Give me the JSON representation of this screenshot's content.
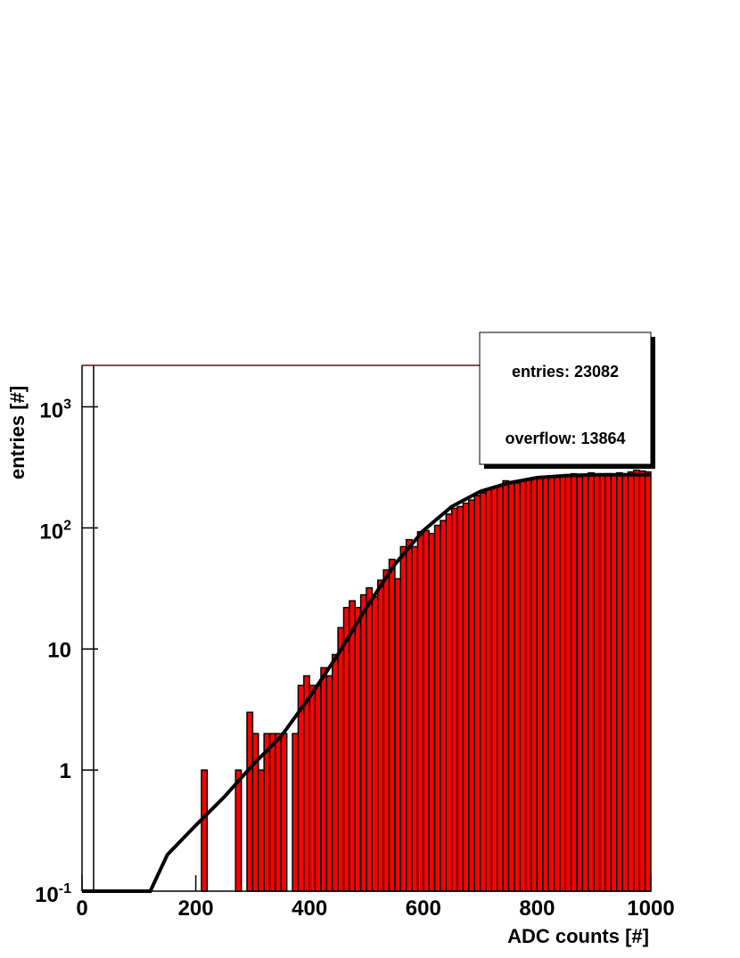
{
  "chart_data": {
    "type": "histogram",
    "bins": [
      0,
      10,
      20,
      30,
      40,
      50,
      60,
      70,
      80,
      90,
      100,
      110,
      120,
      130,
      140,
      150,
      160,
      170,
      180,
      190,
      200,
      210,
      220,
      230,
      240,
      250,
      260,
      270,
      280,
      290,
      300,
      310,
      320,
      330,
      340,
      350,
      360,
      370,
      380,
      390,
      400,
      410,
      420,
      430,
      440,
      450,
      460,
      470,
      480,
      490,
      500,
      510,
      520,
      530,
      540,
      550,
      560,
      570,
      580,
      590,
      600,
      610,
      620,
      630,
      640,
      650,
      660,
      670,
      680,
      690,
      700,
      710,
      720,
      730,
      740,
      750,
      760,
      770,
      780,
      790,
      800,
      810,
      820,
      830,
      840,
      850,
      860,
      870,
      880,
      890,
      900,
      910,
      920,
      930,
      940,
      950,
      960,
      970,
      980,
      990,
      1000
    ],
    "values": [
      0,
      0,
      0,
      0,
      0,
      0,
      0,
      0,
      0,
      0,
      0,
      0,
      0,
      0,
      0,
      0,
      0,
      0,
      0,
      0,
      0,
      1,
      0,
      0,
      0,
      0,
      0,
      1,
      0,
      3,
      2,
      1,
      2,
      2,
      2,
      2,
      0,
      2,
      5,
      6,
      5,
      5,
      7,
      6,
      9,
      15,
      22,
      25,
      22,
      28,
      32,
      27,
      37,
      45,
      55,
      38,
      70,
      80,
      70,
      93,
      95,
      90,
      105,
      115,
      130,
      145,
      150,
      160,
      170,
      185,
      195,
      210,
      215,
      220,
      245,
      240,
      235,
      245,
      250,
      255,
      260,
      265,
      265,
      270,
      270,
      275,
      280,
      265,
      275,
      285,
      270,
      275,
      280,
      270,
      285,
      280,
      290,
      300,
      295,
      290
    ],
    "color": "#ff0000",
    "fit": {
      "color": "#000000",
      "x": [
        0,
        120,
        150,
        200,
        250,
        300,
        350,
        400,
        450,
        500,
        550,
        600,
        650,
        700,
        750,
        800,
        850,
        900,
        950,
        1000
      ],
      "values": [
        0.1,
        0.1,
        0.2,
        0.35,
        0.6,
        1.1,
        1.9,
        4,
        9,
        22,
        50,
        95,
        150,
        200,
        235,
        260,
        270,
        275,
        275,
        275
      ]
    },
    "x_label": "ADC counts [#]",
    "y_label": "entries [#]",
    "xlim": [
      0,
      1000
    ],
    "ylim": [
      0.1,
      2200
    ],
    "log_y": true,
    "xticks": [
      0,
      200,
      400,
      600,
      800,
      1000
    ],
    "yticks": [
      {
        "value": 0.1,
        "label": "10",
        "exponent": "-1"
      },
      1,
      10,
      {
        "value": 100,
        "label": "10",
        "exponent": "2"
      },
      {
        "value": 1000,
        "label": "10",
        "exponent": "3"
      }
    ],
    "stats": {
      "entries": "entries: 23082",
      "overflow": "overflow: 13864"
    }
  }
}
